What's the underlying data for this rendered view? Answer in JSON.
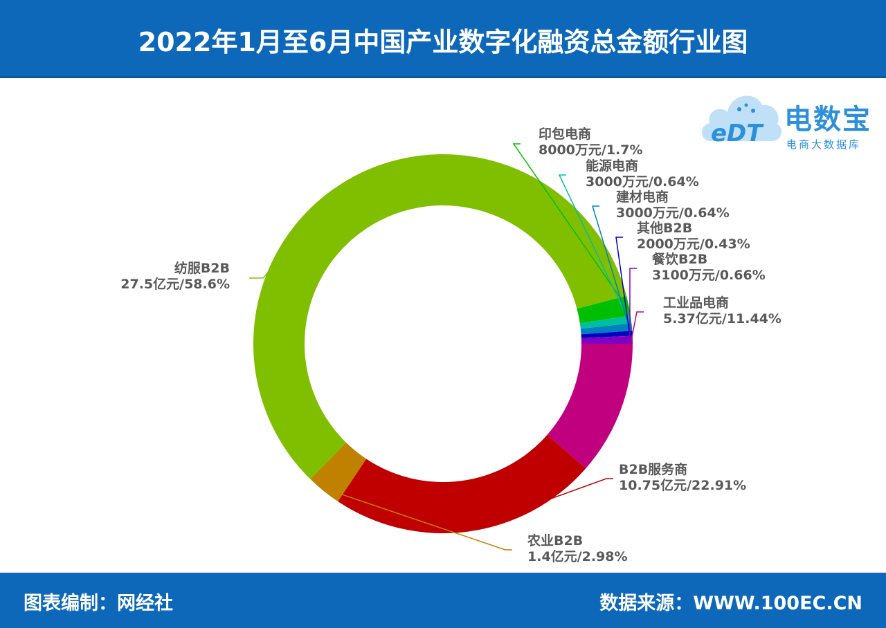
{
  "header": {
    "title": "2022年1月至6月中国产业数字化融资总金额行业图"
  },
  "footer": {
    "left": "图表编制：网经社",
    "right": "数据来源：WWW.100EC.CN"
  },
  "logo": {
    "brand": "电数宝",
    "sub": "电商大数据库",
    "mark": "eDT"
  },
  "colors": {
    "header_bg": "#0d68b9",
    "footer_bg": "#0d68b9"
  },
  "chart_data": {
    "type": "pie",
    "style": "donut",
    "title": "2022年1月至6月中国产业数字化融资总金额行业图",
    "slices": [
      {
        "name": "工业品电商",
        "amount": "5.37亿元",
        "percent": 11.44,
        "label_percent": "11.44%",
        "color": "#c0007f"
      },
      {
        "name": "B2B服务商",
        "amount": "10.75亿元",
        "percent": 22.91,
        "label_percent": "22.91%",
        "color": "#c00000"
      },
      {
        "name": "农业B2B",
        "amount": "1.4亿元",
        "percent": 2.98,
        "label_percent": "2.98%",
        "color": "#c08000"
      },
      {
        "name": "纺服B2B",
        "amount": "27.5亿元",
        "percent": 58.6,
        "label_percent": "58.6%",
        "color": "#80bf00"
      },
      {
        "name": "印包电商",
        "amount": "8000万元",
        "percent": 1.7,
        "label_percent": "1.7%",
        "color": "#00bf00"
      },
      {
        "name": "能源电商",
        "amount": "3000万元",
        "percent": 0.64,
        "label_percent": "0.64%",
        "color": "#00bfa0"
      },
      {
        "name": "建材电商",
        "amount": "3000万元",
        "percent": 0.64,
        "label_percent": "0.64%",
        "color": "#0080c0"
      },
      {
        "name": "其他B2B",
        "amount": "2000万元",
        "percent": 0.43,
        "label_percent": "0.43%",
        "color": "#0000c0"
      },
      {
        "name": "餐饮B2B",
        "amount": "3100万元",
        "percent": 0.66,
        "label_percent": "0.66%",
        "color": "#8000c0"
      }
    ]
  }
}
